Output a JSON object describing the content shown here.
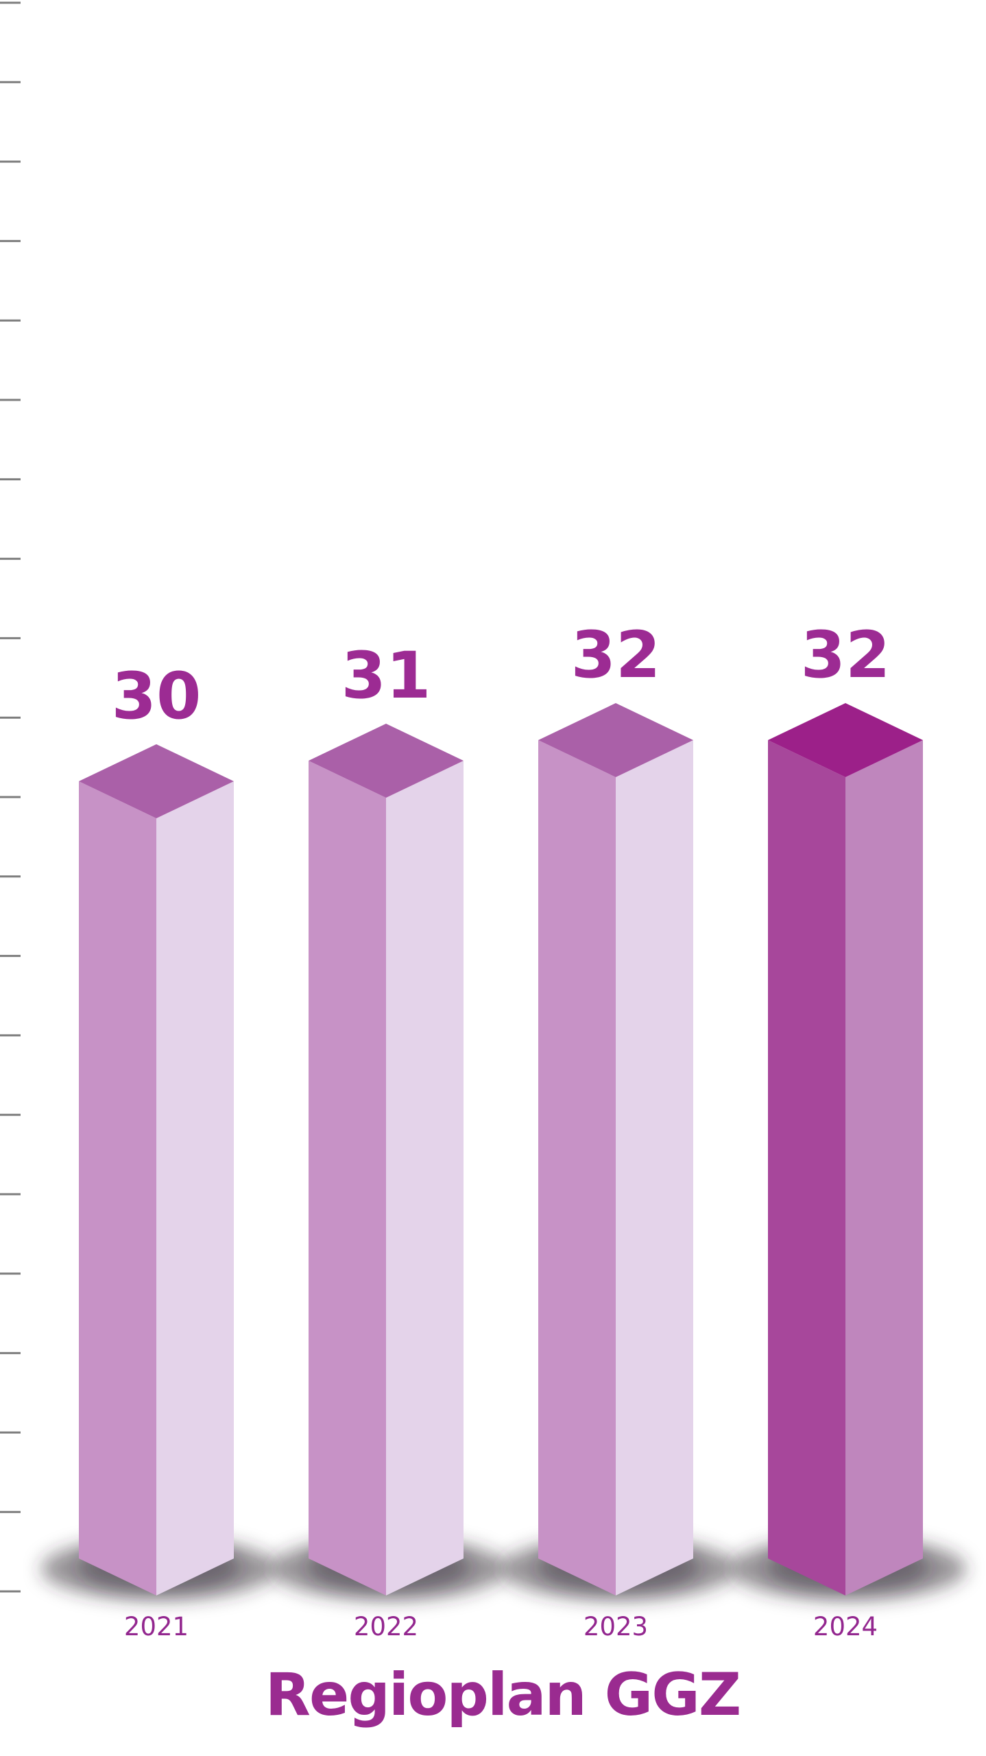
{
  "chart_data": {
    "type": "bar",
    "variant": "3d-isometric-columns",
    "title": "Regioplan GGZ",
    "xlabel": "",
    "ylabel": "",
    "categories": [
      "2021",
      "2022",
      "2023",
      "2024"
    ],
    "values": [
      30,
      31,
      32,
      32
    ],
    "value_labels": [
      "30",
      "31",
      "32",
      "32"
    ],
    "highlight_index": 3,
    "legend_position": "none",
    "grid": false,
    "axis_ticks": {
      "side": "left",
      "count": 21,
      "labels_visible": false
    }
  },
  "style": {
    "background_color": "#ffffff",
    "tick_color": "#7d7d7d",
    "value_label_color": "#9c2b93",
    "year_label_color": "#93278f",
    "title_color": "#9a2b90",
    "shadow_color": "rgba(50,40,52,0.50)",
    "shadow_core_color": "rgba(50,40,52,0.42)",
    "bar_faces_normal": {
      "top": "#aa60a8",
      "left": "#c792c6",
      "right": "#e4d3ea"
    },
    "bar_faces_highlight": {
      "top": "#9c2089",
      "left": "#a7479b",
      "right": "#bf86bd"
    }
  }
}
